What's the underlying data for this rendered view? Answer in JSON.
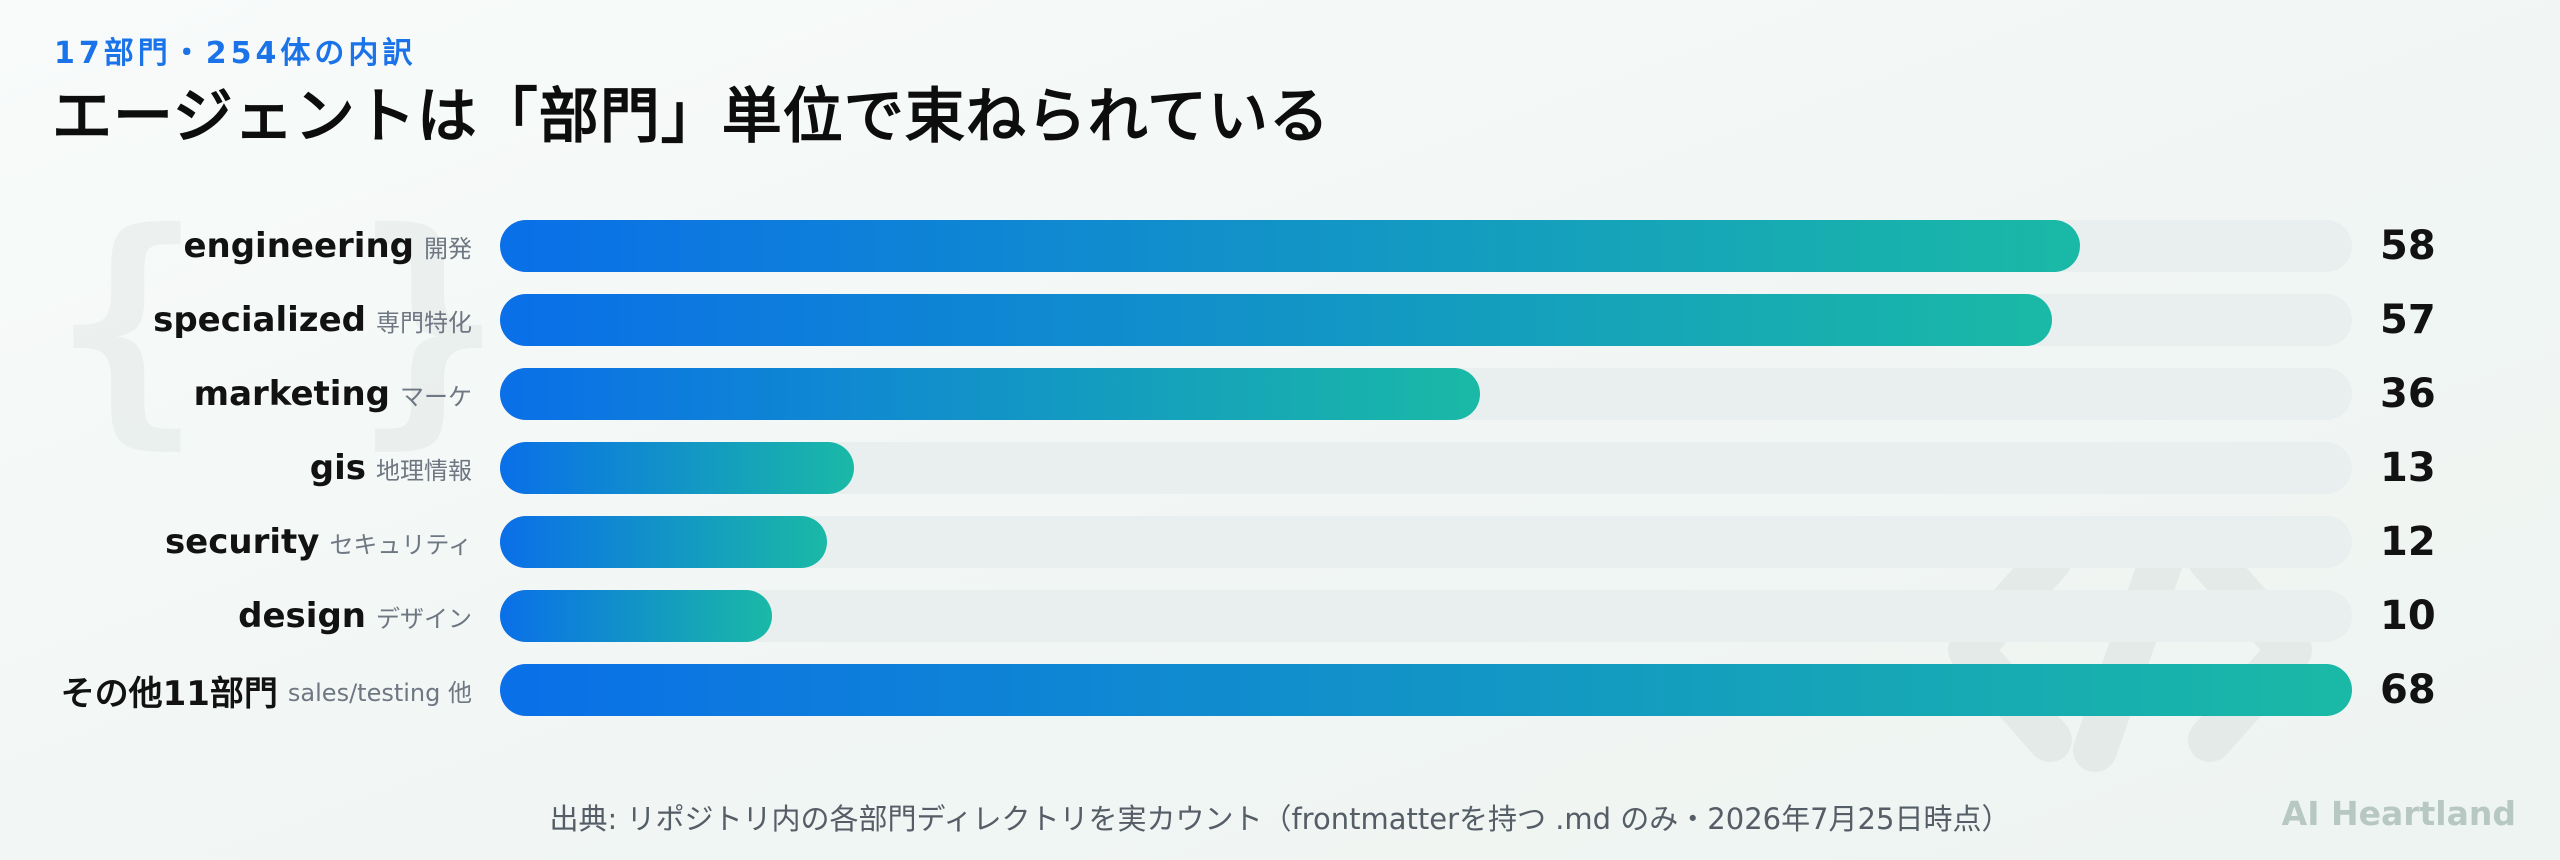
{
  "header": {
    "kicker": "17部門・254体の内訳",
    "title": "エージェントは「部門」単位で束ねられている"
  },
  "chart_data": {
    "type": "bar",
    "orientation": "horizontal",
    "categories": [
      "engineering",
      "specialized",
      "marketing",
      "gis",
      "security",
      "design",
      "その他11部門"
    ],
    "category_subtitles": [
      "開発",
      "専門特化",
      "マーケ",
      "地理情報",
      "セキュリティ",
      "デザイン",
      "sales/testing 他"
    ],
    "values": [
      58,
      57,
      36,
      13,
      12,
      10,
      68
    ],
    "xlim": [
      0,
      68
    ],
    "grid": false,
    "colors": {
      "bar_start": "#0a6fe8",
      "bar_end": "#1ab9a6",
      "track": "#e9eeef"
    }
  },
  "footer": {
    "source": "出典: リポジトリ内の各部門ディレクトリを実カウント（frontmatterを持つ .md のみ・2026年7月25日時点）",
    "brand": "AI Heartland"
  },
  "decor": {
    "icons": [
      "brace-icon",
      "code-icon"
    ]
  }
}
